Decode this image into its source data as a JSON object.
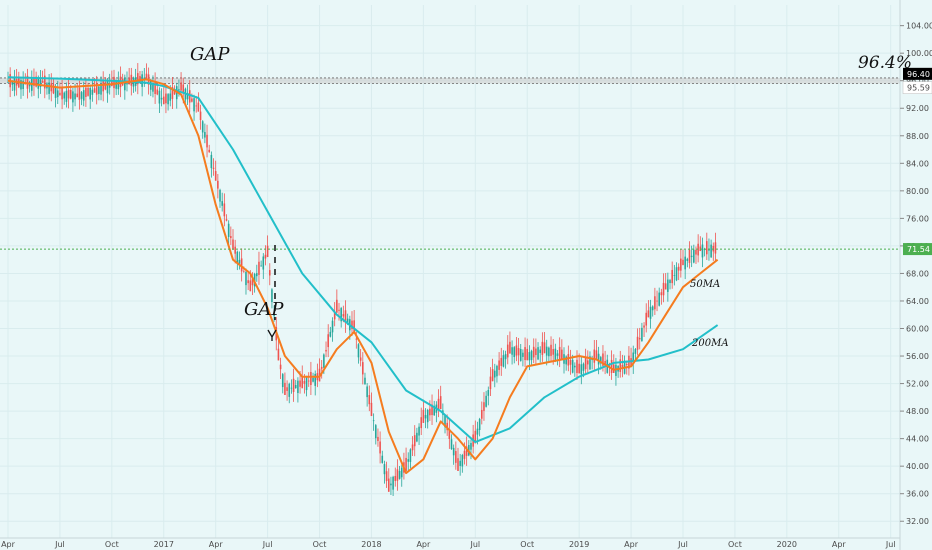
{
  "chart_data": {
    "type": "line",
    "xlabel": "",
    "ylabel": "",
    "ylim": [
      30,
      107
    ],
    "xlim_months": [
      "2016-04",
      "2020-08"
    ],
    "x_tick_labels": [
      "Apr",
      "Jul",
      "Oct",
      "2017",
      "Apr",
      "Jul",
      "Oct",
      "2018",
      "Apr",
      "Jul",
      "Oct",
      "2019",
      "Apr",
      "Jul",
      "Oct",
      "2020",
      "Apr",
      "Jul"
    ],
    "y_tick_labels": [
      "32.00",
      "36.00",
      "40.00",
      "44.00",
      "48.00",
      "52.00",
      "56.00",
      "60.00",
      "64.00",
      "68.00",
      "72.00",
      "76.00",
      "80.00",
      "84.00",
      "88.00",
      "92.00",
      "96.00",
      "100.00",
      "104.00"
    ],
    "y_ticks": [
      32,
      36,
      40,
      44,
      48,
      52,
      56,
      60,
      64,
      68,
      72,
      76,
      80,
      84,
      88,
      92,
      96,
      100,
      104
    ],
    "colors": {
      "background": "#e9f7f8",
      "price_up": "#26a69a",
      "price_down": "#ef5350",
      "ma50": "#f57c1f",
      "ma200": "#22bfc9",
      "last_price_line": "#4caf50",
      "gap_band": "#cfcfcf"
    },
    "series": [
      {
        "name": "50MA",
        "points": [
          [
            "2016-04",
            96.0
          ],
          [
            "2016-07",
            95.0
          ],
          [
            "2016-10",
            95.5
          ],
          [
            "2016-12",
            96.2
          ],
          [
            "2017-01",
            95.5
          ],
          [
            "2017-02",
            94.0
          ],
          [
            "2017-03",
            88.0
          ],
          [
            "2017-04",
            78.0
          ],
          [
            "2017-05",
            70.0
          ],
          [
            "2017-06",
            68.0
          ],
          [
            "2017-07",
            63.0
          ],
          [
            "2017-08",
            56.0
          ],
          [
            "2017-09",
            53.0
          ],
          [
            "2017-10",
            53.0
          ],
          [
            "2017-11",
            57.0
          ],
          [
            "2017-12",
            59.5
          ],
          [
            "2018-01",
            55.0
          ],
          [
            "2018-02",
            45.0
          ],
          [
            "2018-03",
            39.0
          ],
          [
            "2018-04",
            41.0
          ],
          [
            "2018-05",
            46.5
          ],
          [
            "2018-06",
            44.0
          ],
          [
            "2018-07",
            41.0
          ],
          [
            "2018-08",
            44.0
          ],
          [
            "2018-09",
            50.0
          ],
          [
            "2018-10",
            54.5
          ],
          [
            "2018-11",
            55.0
          ],
          [
            "2018-12",
            55.5
          ],
          [
            "2019-01",
            56.0
          ],
          [
            "2019-02",
            55.5
          ],
          [
            "2019-03",
            54.0
          ],
          [
            "2019-04",
            54.5
          ],
          [
            "2019-05",
            58.0
          ],
          [
            "2019-06",
            62.0
          ],
          [
            "2019-07",
            66.0
          ],
          [
            "2019-08",
            68.0
          ],
          [
            "2019-09",
            70.0
          ]
        ]
      },
      {
        "name": "200MA",
        "points": [
          [
            "2016-04",
            96.5
          ],
          [
            "2016-07",
            96.3
          ],
          [
            "2016-10",
            96.0
          ],
          [
            "2016-12",
            95.7
          ],
          [
            "2017-01",
            95.2
          ],
          [
            "2017-03",
            93.5
          ],
          [
            "2017-05",
            86.0
          ],
          [
            "2017-07",
            77.0
          ],
          [
            "2017-09",
            68.0
          ],
          [
            "2017-11",
            62.0
          ],
          [
            "2018-01",
            58.0
          ],
          [
            "2018-03",
            51.0
          ],
          [
            "2018-05",
            48.0
          ],
          [
            "2018-07",
            43.5
          ],
          [
            "2018-09",
            45.5
          ],
          [
            "2018-11",
            50.0
          ],
          [
            "2019-01",
            53.0
          ],
          [
            "2019-03",
            55.0
          ],
          [
            "2019-05",
            55.5
          ],
          [
            "2019-07",
            57.0
          ],
          [
            "2019-09",
            60.5
          ]
        ]
      },
      {
        "name": "price",
        "points": [
          [
            "2016-04",
            95.8
          ],
          [
            "2016-05",
            95.5
          ],
          [
            "2016-06",
            95.8
          ],
          [
            "2016-07",
            94.0
          ],
          [
            "2016-08",
            93.8
          ],
          [
            "2016-09",
            94.5
          ],
          [
            "2016-10",
            95.5
          ],
          [
            "2016-11",
            95.8
          ],
          [
            "2016-12",
            96.4
          ],
          [
            "2017-01",
            93.0
          ],
          [
            "2017-02",
            95.0
          ],
          [
            "2017-03",
            92.0
          ],
          [
            "2017-04",
            82.0
          ],
          [
            "2017-05",
            72.0
          ],
          [
            "2017-06",
            66.0
          ],
          [
            "2017-07",
            71.0
          ],
          [
            "2017-07-20",
            56.0
          ],
          [
            "2017-08",
            51.0
          ],
          [
            "2017-09",
            52.0
          ],
          [
            "2017-10",
            53.0
          ],
          [
            "2017-11",
            63.0
          ],
          [
            "2017-12",
            60.0
          ],
          [
            "2018-01",
            48.0
          ],
          [
            "2018-02",
            37.0
          ],
          [
            "2018-03",
            40.0
          ],
          [
            "2018-04",
            47.0
          ],
          [
            "2018-05",
            49.0
          ],
          [
            "2018-06",
            40.0
          ],
          [
            "2018-07",
            44.0
          ],
          [
            "2018-08",
            53.0
          ],
          [
            "2018-09",
            57.0
          ],
          [
            "2018-10",
            56.0
          ],
          [
            "2018-11",
            57.0
          ],
          [
            "2018-12",
            56.0
          ],
          [
            "2019-01",
            54.0
          ],
          [
            "2019-02",
            56.0
          ],
          [
            "2019-03",
            54.0
          ],
          [
            "2019-04",
            55.0
          ],
          [
            "2019-05",
            62.0
          ],
          [
            "2019-06",
            66.0
          ],
          [
            "2019-07",
            69.5
          ],
          [
            "2019-08",
            71.5
          ],
          [
            "2019-09",
            71.5
          ]
        ]
      }
    ],
    "last_price": 71.54,
    "last_price_label": "71.54",
    "gap_top": 96.4,
    "gap_bottom": 95.59,
    "gap_top_label": "96.40",
    "gap_bottom_label": "95.59",
    "annotations": {
      "gap_top_text": "GAP",
      "gap_mid_text": "GAP",
      "gap_pct_text": "96.4%",
      "ma50_label": "50MA",
      "ma200_label": "200MA"
    }
  }
}
